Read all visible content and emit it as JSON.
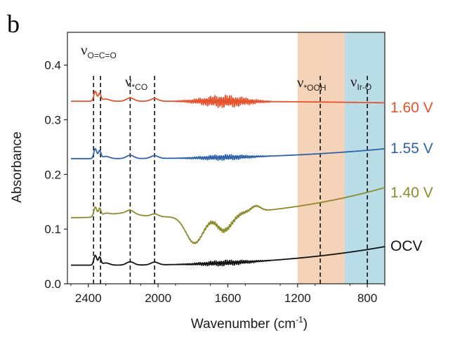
{
  "panel_label": "b",
  "chart_data": {
    "type": "line",
    "xlabel": "Wavenumber (cm",
    "xlabel_sup": "-1",
    "xlabel_close": ")",
    "ylabel": "Absorbance",
    "xlim": [
      2520,
      700
    ],
    "ylim": [
      0.0,
      0.46
    ],
    "x_reversed": true,
    "xticks": [
      2400,
      2000,
      1600,
      1200,
      800
    ],
    "xtick_labels": [
      "2400",
      "2000",
      "1600",
      "1200",
      "800"
    ],
    "yticks": [
      0.0,
      0.1,
      0.2,
      0.3,
      0.4
    ],
    "ytick_labels": [
      "0.0",
      "0.1",
      "0.2",
      "0.3",
      "0.4"
    ],
    "shaded_regions": [
      {
        "x_from": 1200,
        "x_to": 930,
        "color": "#f5d3b8"
      },
      {
        "x_from": 930,
        "x_to": 700,
        "color": "#b9dde6"
      }
    ],
    "reference_lines": [
      2370,
      2330,
      2160,
      2020,
      1070,
      800
    ],
    "annotations": [
      {
        "symbol": "ν",
        "sub": "O=C=O",
        "x": 2350
      },
      {
        "symbol": "ν",
        "sub": "*CO",
        "x": 2090
      },
      {
        "symbol": "ν",
        "sub": "*OOH",
        "x": 1070
      },
      {
        "symbol": "ν",
        "sub": "Ir-O",
        "x": 800
      }
    ],
    "series": [
      {
        "name": "1.60 V",
        "color": "#e6522c",
        "offset": 0.334,
        "end_value": 0.331,
        "noise": 1.0
      },
      {
        "name": "1.55 V",
        "color": "#2f62a8",
        "offset": 0.229,
        "end_value": 0.247,
        "noise": 0.45
      },
      {
        "name": "1.40 V",
        "color": "#8b8a2c",
        "offset": 0.121,
        "end_value": 0.176,
        "noise": 0.35
      },
      {
        "name": "OCV",
        "color": "#111111",
        "offset": 0.034,
        "end_value": 0.068,
        "noise": 0.45
      }
    ]
  }
}
